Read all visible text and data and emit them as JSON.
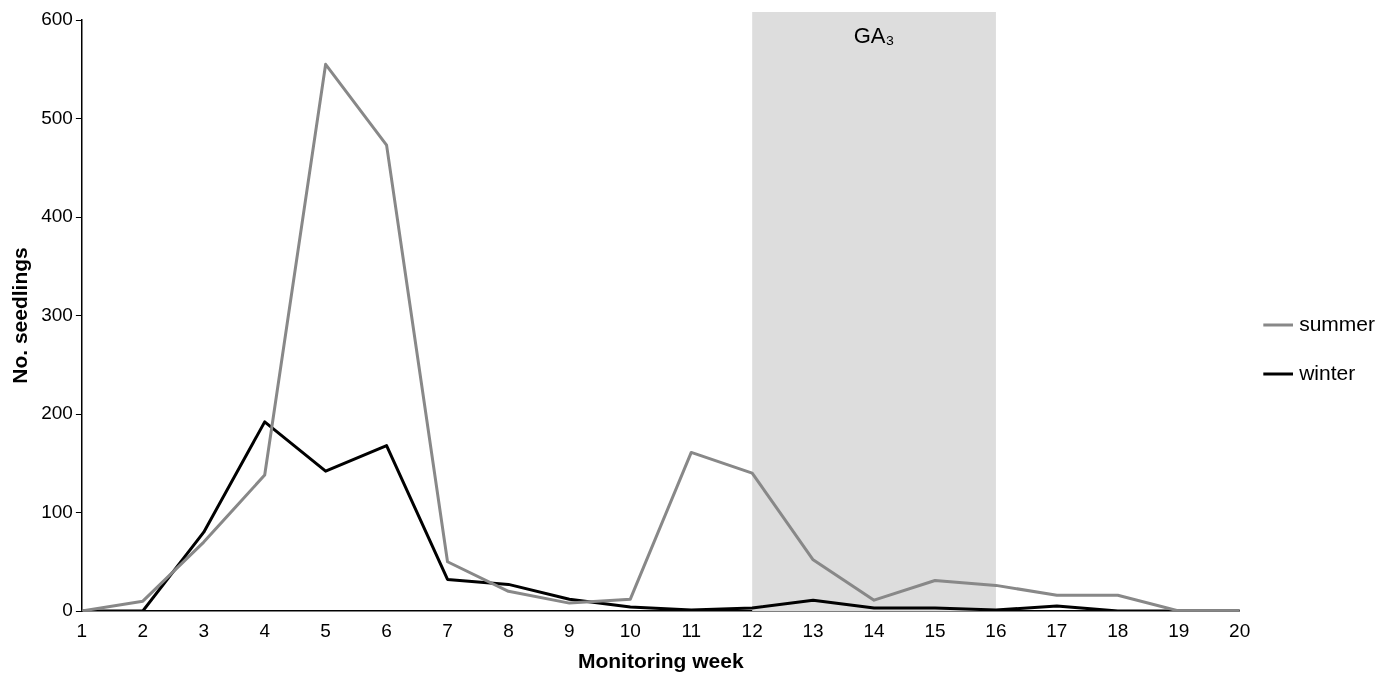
{
  "chart_data": {
    "type": "line",
    "xlabel": "Monitoring week",
    "ylabel": "No. seedlings",
    "x": [
      1,
      2,
      3,
      4,
      5,
      6,
      7,
      8,
      9,
      10,
      11,
      12,
      13,
      14,
      15,
      16,
      17,
      18,
      19,
      20
    ],
    "series": [
      {
        "name": "summer",
        "color": "#888888",
        "values": [
          0,
          10,
          70,
          138,
          555,
          473,
          50,
          20,
          8,
          12,
          161,
          140,
          52,
          11,
          31,
          26,
          16,
          16,
          0,
          0
        ]
      },
      {
        "name": "winter",
        "color": "#000000",
        "values": [
          0,
          0,
          80,
          192,
          142,
          168,
          32,
          27,
          12,
          4,
          1,
          3,
          11,
          3,
          3,
          1,
          5,
          0,
          0,
          0
        ]
      }
    ],
    "xlim": [
      1,
      20
    ],
    "xticks": [
      1,
      2,
      3,
      4,
      5,
      6,
      7,
      8,
      9,
      10,
      11,
      12,
      13,
      14,
      15,
      16,
      17,
      18,
      19,
      20
    ],
    "ylim": [
      0,
      600
    ],
    "yticks": [
      0,
      100,
      200,
      300,
      400,
      500,
      600
    ],
    "bands": [
      {
        "axis": "x",
        "from": 12,
        "to": 16,
        "label": "GA₃",
        "color": "#dddddd"
      }
    ],
    "grid": false,
    "legend": "right",
    "marker": "none",
    "line_style": "solid"
  }
}
